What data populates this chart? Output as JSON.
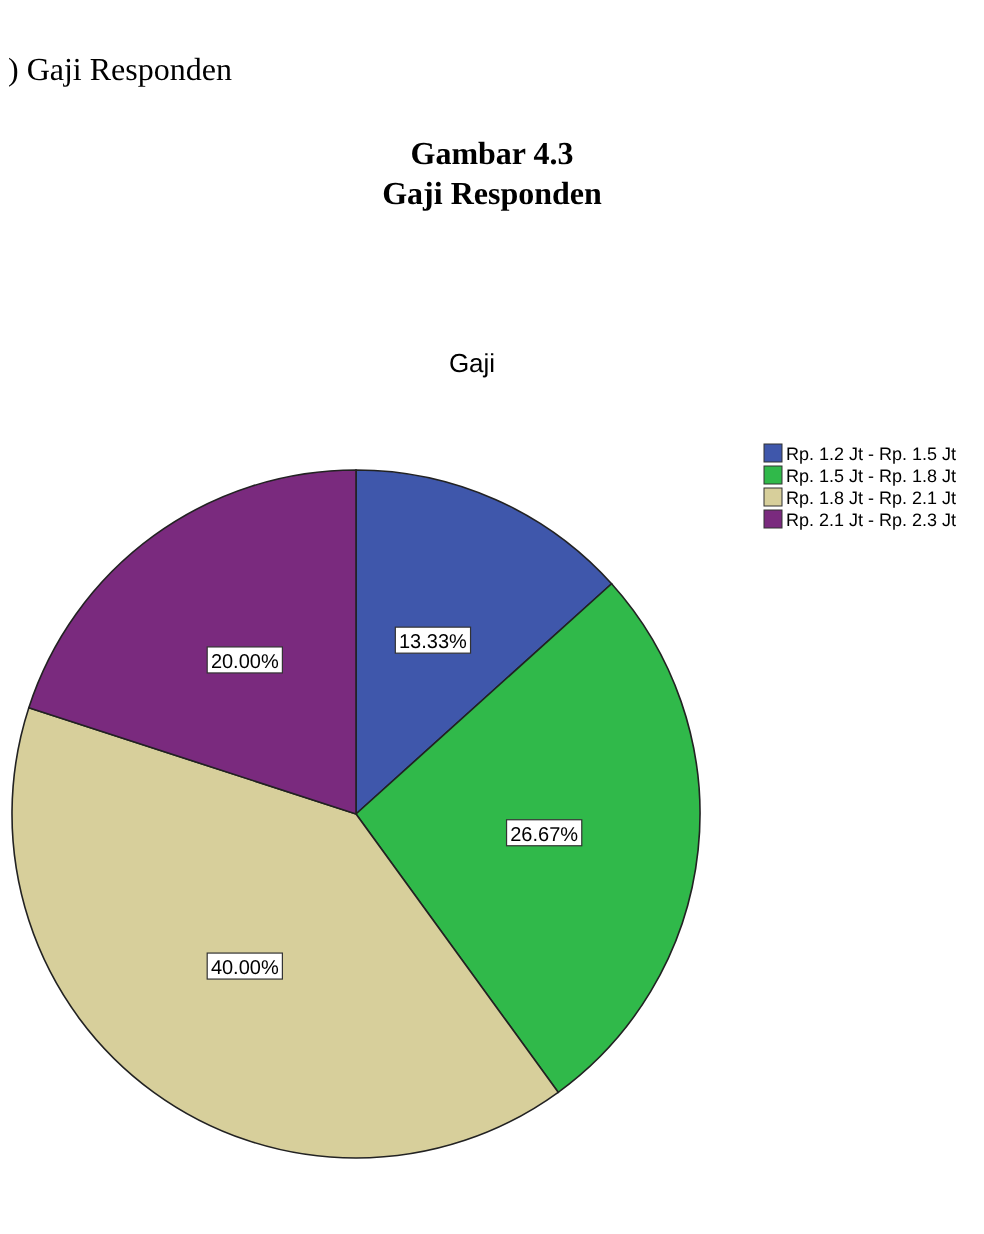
{
  "chart_data": {
    "type": "pie",
    "title": "Gaji",
    "annotations": [
      ") Gaji Responden",
      "Gambar 4.3",
      "Gaji Responden"
    ],
    "categories": [
      "Rp. 1.2 Jt - Rp. 1.5 Jt",
      "Rp. 1.5 Jt - Rp. 1.8  Jt",
      "Rp. 1.8 Jt - Rp. 2.1 Jt",
      "Rp. 2.1 Jt - Rp. 2.3 Jt"
    ],
    "values": [
      13.33,
      26.67,
      40.0,
      20.0
    ],
    "value_labels": [
      "13.33%",
      "26.67%",
      "40.00%",
      "20.00%"
    ],
    "colors": [
      "#3f57ab",
      "#30b94a",
      "#d7cf9b",
      "#7a2a7e"
    ],
    "legend": "top right"
  }
}
